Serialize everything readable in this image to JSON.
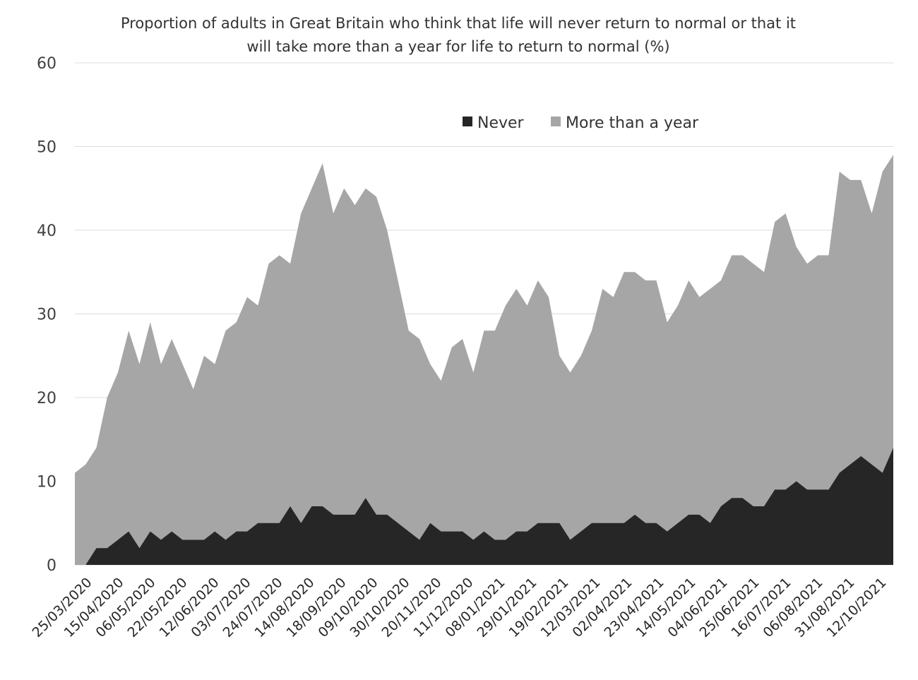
{
  "chart_data": {
    "type": "area",
    "stacked": true,
    "title_lines": [
      "Proportion of adults in Great Britain who think that life will never return to normal or that it",
      "will take more than a year for life to return to normal (%)"
    ],
    "ylim": [
      0,
      60
    ],
    "yticks": [
      0,
      10,
      20,
      30,
      40,
      50,
      60
    ],
    "grid": true,
    "legend_placement": "top-center",
    "x_tick_labels": [
      "25/03/2020",
      "15/04/2020",
      "06/05/2020",
      "22/05/2020",
      "12/06/2020",
      "03/07/2020",
      "24/07/2020",
      "14/08/2020",
      "18/09/2020",
      "09/10/2020",
      "30/10/2020",
      "20/11/2020",
      "11/12/2020",
      "08/01/2021",
      "29/01/2021",
      "19/02/2021",
      "12/03/2021",
      "02/04/2021",
      "23/04/2021",
      "14/05/2021",
      "04/06/2021",
      "25/06/2021",
      "16/07/2021",
      "06/08/2021",
      "31/08/2021",
      "12/10/2021"
    ],
    "series": [
      {
        "name": "Never",
        "color": "#262626",
        "values": [
          0,
          0,
          2,
          2,
          3,
          4,
          2,
          4,
          3,
          4,
          3,
          3,
          3,
          4,
          3,
          4,
          4,
          5,
          5,
          5,
          7,
          5,
          7,
          7,
          6,
          6,
          6,
          8,
          6,
          6,
          5,
          4,
          3,
          5,
          4,
          4,
          4,
          3,
          4,
          3,
          3,
          4,
          4,
          5,
          5,
          5,
          3,
          4,
          5,
          5,
          5,
          5,
          6,
          5,
          5,
          4,
          5,
          6,
          6,
          5,
          7,
          8,
          8,
          7,
          7,
          9,
          9,
          10,
          9,
          9,
          9,
          11,
          12,
          13,
          12,
          11,
          14
        ]
      },
      {
        "name": "More than a year",
        "color": "#a6a6a6",
        "total_values": [
          11,
          12,
          14,
          20,
          23,
          28,
          24,
          29,
          24,
          27,
          24,
          21,
          25,
          24,
          28,
          29,
          32,
          31,
          36,
          37,
          36,
          42,
          45,
          48,
          42,
          45,
          43,
          45,
          44,
          40,
          34,
          28,
          27,
          24,
          22,
          26,
          27,
          23,
          28,
          28,
          31,
          33,
          31,
          34,
          32,
          25,
          23,
          25,
          28,
          33,
          32,
          35,
          35,
          34,
          34,
          29,
          31,
          34,
          32,
          33,
          34,
          37,
          37,
          36,
          35,
          41,
          42,
          38,
          36,
          37,
          37,
          47,
          46,
          46,
          42,
          47,
          49
        ]
      }
    ]
  }
}
